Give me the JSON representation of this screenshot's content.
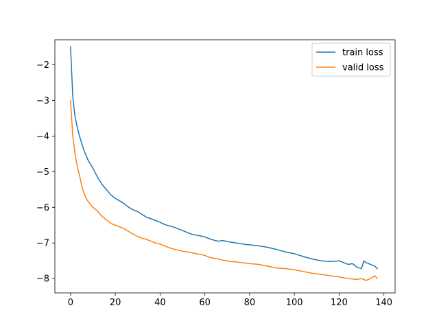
{
  "chart_data": {
    "type": "line",
    "title": "",
    "xlabel": "",
    "ylabel": "",
    "xlim": [
      -7,
      145
    ],
    "ylim": [
      -8.4,
      -1.3
    ],
    "xticks": [
      0,
      20,
      40,
      60,
      80,
      100,
      120,
      140
    ],
    "yticks": [
      -8,
      -7,
      -6,
      -5,
      -4,
      -3,
      -2
    ],
    "xtick_labels": [
      "0",
      "20",
      "40",
      "60",
      "80",
      "100",
      "120",
      "140"
    ],
    "ytick_labels": [
      "−8",
      "−7",
      "−6",
      "−5",
      "−4",
      "−3",
      "−2"
    ],
    "grid": false,
    "legend_position": "upper-right",
    "series": [
      {
        "name": "train loss",
        "color": "#1f77b4",
        "x": [
          0,
          1,
          2,
          3,
          4,
          5,
          6,
          7,
          8,
          9,
          10,
          12,
          14,
          16,
          18,
          20,
          22,
          24,
          26,
          28,
          30,
          32,
          34,
          36,
          38,
          40,
          42,
          44,
          46,
          48,
          50,
          52,
          54,
          56,
          58,
          60,
          62,
          64,
          66,
          68,
          70,
          72,
          74,
          76,
          78,
          80,
          84,
          88,
          92,
          96,
          100,
          104,
          108,
          112,
          116,
          120,
          122,
          124,
          126,
          128,
          130,
          131,
          132,
          134,
          136,
          137
        ],
        "values": [
          -1.5,
          -2.9,
          -3.45,
          -3.75,
          -4.0,
          -4.2,
          -4.4,
          -4.55,
          -4.7,
          -4.8,
          -4.9,
          -5.15,
          -5.35,
          -5.5,
          -5.65,
          -5.75,
          -5.82,
          -5.9,
          -6.0,
          -6.07,
          -6.12,
          -6.2,
          -6.28,
          -6.32,
          -6.37,
          -6.42,
          -6.48,
          -6.52,
          -6.55,
          -6.6,
          -6.65,
          -6.7,
          -6.75,
          -6.78,
          -6.8,
          -6.83,
          -6.88,
          -6.92,
          -6.95,
          -6.93,
          -6.96,
          -6.98,
          -7.0,
          -7.02,
          -7.04,
          -7.05,
          -7.08,
          -7.12,
          -7.18,
          -7.25,
          -7.3,
          -7.38,
          -7.45,
          -7.5,
          -7.52,
          -7.5,
          -7.55,
          -7.6,
          -7.58,
          -7.68,
          -7.72,
          -7.5,
          -7.55,
          -7.6,
          -7.65,
          -7.72
        ]
      },
      {
        "name": "valid loss",
        "color": "#ff7f0e",
        "x": [
          0,
          1,
          2,
          3,
          4,
          5,
          6,
          7,
          8,
          9,
          10,
          12,
          14,
          16,
          18,
          20,
          22,
          24,
          26,
          28,
          30,
          32,
          34,
          36,
          38,
          40,
          42,
          44,
          46,
          48,
          50,
          52,
          54,
          56,
          58,
          60,
          62,
          64,
          66,
          68,
          70,
          72,
          74,
          76,
          78,
          80,
          84,
          88,
          92,
          96,
          100,
          104,
          108,
          112,
          116,
          120,
          124,
          128,
          130,
          132,
          134,
          136,
          137
        ],
        "values": [
          -3.0,
          -4.0,
          -4.5,
          -4.85,
          -5.1,
          -5.4,
          -5.6,
          -5.75,
          -5.85,
          -5.92,
          -6.0,
          -6.1,
          -6.25,
          -6.35,
          -6.45,
          -6.5,
          -6.55,
          -6.6,
          -6.68,
          -6.75,
          -6.82,
          -6.87,
          -6.9,
          -6.95,
          -7.0,
          -7.03,
          -7.08,
          -7.13,
          -7.17,
          -7.2,
          -7.23,
          -7.25,
          -7.27,
          -7.3,
          -7.32,
          -7.35,
          -7.4,
          -7.43,
          -7.45,
          -7.48,
          -7.5,
          -7.52,
          -7.53,
          -7.55,
          -7.56,
          -7.58,
          -7.6,
          -7.65,
          -7.7,
          -7.72,
          -7.75,
          -7.8,
          -7.85,
          -7.88,
          -7.92,
          -7.95,
          -8.0,
          -8.02,
          -8.0,
          -8.05,
          -8.0,
          -7.92,
          -8.0
        ]
      }
    ]
  }
}
